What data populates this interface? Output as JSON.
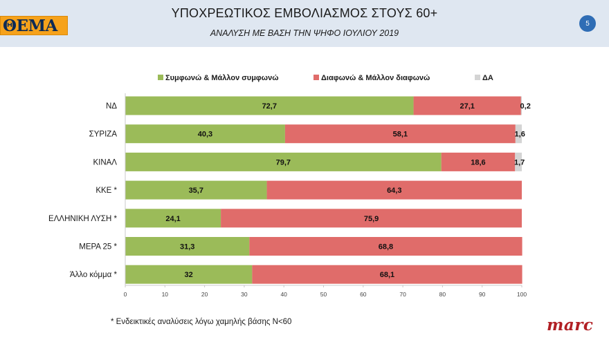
{
  "header": {
    "logo_text": "ΘΕΜΑ",
    "title": "ΥΠΟΧΡΕΩΤΙΚΟΣ ΕΜΒΟΛΙΑΣΜΟΣ ΣΤΟΥΣ 60+",
    "subtitle": "ΑΝΑΛΥΣΗ ΜΕ ΒΑΣΗ ΤΗΝ ΨΗΦΟ ΙΟΥΛΙΟΥ 2019",
    "page_number": "5"
  },
  "chart_data": {
    "type": "bar",
    "orientation": "horizontal",
    "stacked": true,
    "categories": [
      "ΝΔ",
      "ΣΥΡΙΖΑ",
      "ΚΙΝΑΛ",
      "ΚΚΕ *",
      "ΕΛΛΗΝΙΚΗ ΛΥΣΗ *",
      "ΜΕΡΑ 25 *",
      "Άλλο κόμμα *"
    ],
    "series": [
      {
        "name": "Συμφωνώ & Μάλλον συμφωνώ",
        "color": "#9bbb59",
        "values": [
          72.7,
          40.3,
          79.7,
          35.7,
          24.1,
          31.3,
          32
        ],
        "labels": [
          "72,7",
          "40,3",
          "79,7",
          "35,7",
          "24,1",
          "31,3",
          "32"
        ]
      },
      {
        "name": "Διαφωνώ & Μάλλον διαφωνώ",
        "color": "#e06c6a",
        "values": [
          27.1,
          58.1,
          18.6,
          64.3,
          75.9,
          68.8,
          68.1
        ],
        "labels": [
          "27,1",
          "58,1",
          "18,6",
          "64,3",
          "75,9",
          "68,8",
          "68,1"
        ]
      },
      {
        "name": "ΔΑ",
        "color": "#d4d4d4",
        "values": [
          0.2,
          1.6,
          1.7,
          null,
          null,
          null,
          null
        ],
        "labels": [
          "0,2",
          "1,6",
          "1,7",
          null,
          null,
          null,
          null
        ]
      }
    ],
    "xlim": [
      0,
      100
    ],
    "xticks": [
      0,
      10,
      20,
      30,
      40,
      50,
      60,
      70,
      80,
      90,
      100
    ],
    "legend_position": "top",
    "grid": false
  },
  "footer": {
    "footnote": "* Ενδεικτικές αναλύσεις λόγω χαμηλής βάσης Ν<60",
    "brand": "marc"
  }
}
